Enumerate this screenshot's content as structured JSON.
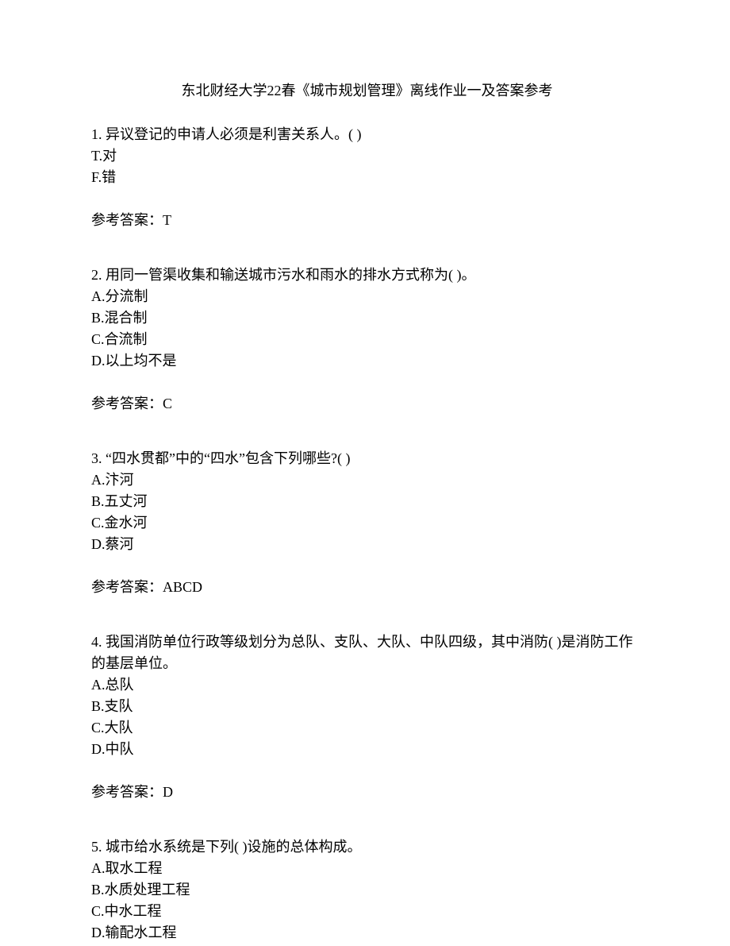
{
  "title": "东北财经大学22春《城市规划管理》离线作业一及答案参考",
  "questions": [
    {
      "number": "1.",
      "text": "异议登记的申请人必须是利害关系人。(   )",
      "options": [
        {
          "label": "T.",
          "text": "对"
        },
        {
          "label": "F.",
          "text": "错"
        }
      ],
      "answerLabel": "参考答案：",
      "answer": "T"
    },
    {
      "number": "2.",
      "text": "用同一管渠收集和输送城市污水和雨水的排水方式称为(   )。",
      "options": [
        {
          "label": "A.",
          "text": "分流制"
        },
        {
          "label": "B.",
          "text": "混合制"
        },
        {
          "label": "C.",
          "text": "合流制"
        },
        {
          "label": "D.",
          "text": "以上均不是"
        }
      ],
      "answerLabel": "参考答案：",
      "answer": "C"
    },
    {
      "number": "3.",
      "text": "“四水贯都”中的“四水”包含下列哪些?(   )",
      "options": [
        {
          "label": "A.",
          "text": "汴河"
        },
        {
          "label": "B.",
          "text": "五丈河"
        },
        {
          "label": "C.",
          "text": "金水河"
        },
        {
          "label": "D.",
          "text": "蔡河"
        }
      ],
      "answerLabel": "参考答案：",
      "answer": "ABCD"
    },
    {
      "number": "4.",
      "text": "我国消防单位行政等级划分为总队、支队、大队、中队四级，其中消防(   )是消防工作的基层单位。",
      "options": [
        {
          "label": "A.",
          "text": "总队"
        },
        {
          "label": "B.",
          "text": "支队"
        },
        {
          "label": "C.",
          "text": "大队"
        },
        {
          "label": "D.",
          "text": "中队"
        }
      ],
      "answerLabel": "参考答案：",
      "answer": "D"
    },
    {
      "number": "5.",
      "text": "城市给水系统是下列(   )设施的总体构成。",
      "options": [
        {
          "label": "A.",
          "text": "取水工程"
        },
        {
          "label": "B.",
          "text": "水质处理工程"
        },
        {
          "label": "C.",
          "text": "中水工程"
        },
        {
          "label": "D.",
          "text": "输配水工程"
        }
      ],
      "answerLabel": "",
      "answer": ""
    }
  ]
}
